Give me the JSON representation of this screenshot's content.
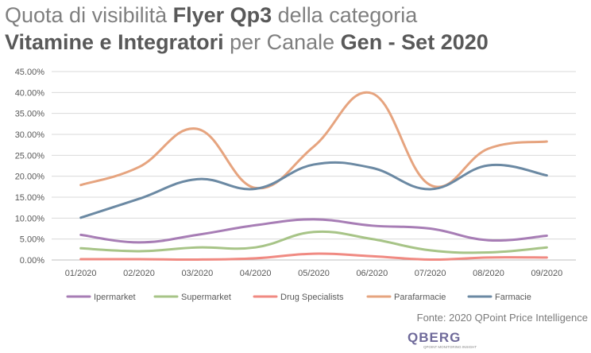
{
  "title": {
    "line1_pre": "Quota di visibilità ",
    "line1_bold": "Flyer Qp3",
    "line1_post": " della categoria",
    "line2_bold": "Vitamine e Integratori",
    "line2_mid": " per Canale ",
    "line2_bold2": "Gen - Set 2020"
  },
  "source": "Fonte: 2020 QPoint Price Intelligence",
  "logo": {
    "text": "QBERG",
    "tagline": "QPOINT MONITORING INSIGHT"
  },
  "chart_data": {
    "type": "line",
    "categories": [
      "01/2020",
      "02/2020",
      "03/2020",
      "04/2020",
      "05/2020",
      "06/2020",
      "07/2020",
      "08/2020",
      "09/2020"
    ],
    "y_ticks": [
      "0.00%",
      "5.00%",
      "10.00%",
      "15.00%",
      "20.00%",
      "25.00%",
      "30.00%",
      "35.00%",
      "40.00%",
      "45.00%"
    ],
    "ylim": [
      0,
      45
    ],
    "grid": true,
    "smooth": true,
    "legend_position": "bottom",
    "series": [
      {
        "name": "Ipermarket",
        "color": "#a77db5",
        "values": [
          6.0,
          4.2,
          6.0,
          8.3,
          9.7,
          8.2,
          7.5,
          4.7,
          5.8
        ]
      },
      {
        "name": "Supermarket",
        "color": "#a7c487",
        "values": [
          2.8,
          2.1,
          3.0,
          3.0,
          6.7,
          5.0,
          2.3,
          1.8,
          3.0
        ]
      },
      {
        "name": "Drug Specialists",
        "color": "#f08a82",
        "values": [
          0.2,
          0.2,
          0.1,
          0.4,
          1.5,
          0.9,
          0.1,
          0.6,
          0.6
        ]
      },
      {
        "name": "Parafarmacie",
        "color": "#e6a47f",
        "values": [
          17.9,
          22.2,
          31.3,
          17.2,
          27.1,
          39.8,
          17.9,
          26.6,
          28.3
        ]
      },
      {
        "name": "Farmacie",
        "color": "#6b89a3",
        "values": [
          10.1,
          14.6,
          19.3,
          17.0,
          22.8,
          22.0,
          16.9,
          22.6,
          20.2
        ]
      }
    ]
  }
}
